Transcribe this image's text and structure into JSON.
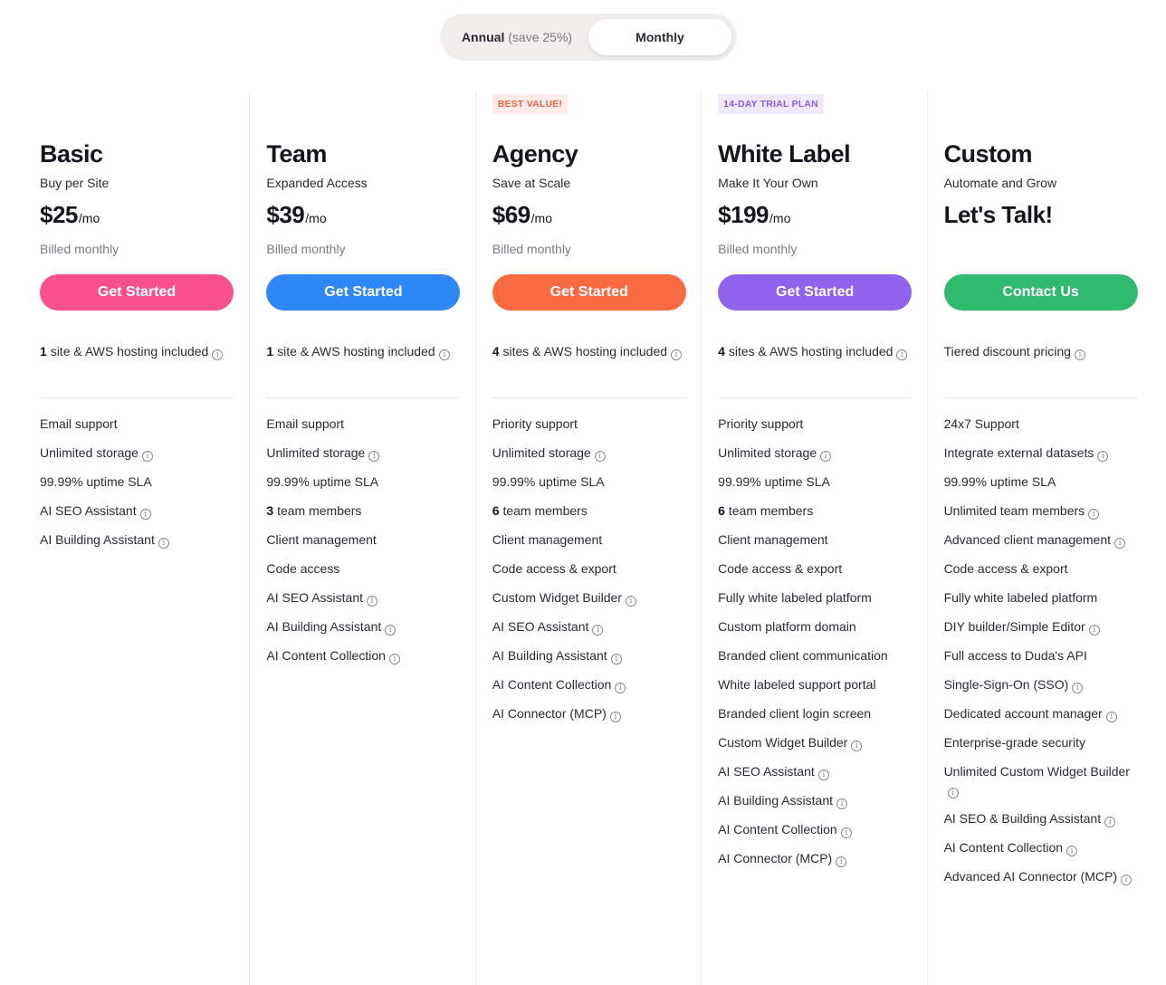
{
  "billing_toggle": {
    "annual_label": "Annual",
    "annual_note": "(save 25%)",
    "monthly_label": "Monthly",
    "selected": "monthly"
  },
  "plans": [
    {
      "id": "basic",
      "name": "Basic",
      "tagline": "Buy per Site",
      "price": "$25",
      "price_unit": "/mo",
      "billed": "Billed monthly",
      "cta": "Get Started",
      "cta_color": "#f7508c",
      "hosting_count": "1",
      "hosting_text": "site & AWS hosting included",
      "hosting_info": true,
      "features": [
        {
          "text": "Email support",
          "info": false
        },
        {
          "text": "Unlimited storage",
          "info": true
        },
        {
          "text": "99.99% uptime SLA",
          "info": false
        },
        {
          "text": "AI SEO Assistant",
          "info": true
        },
        {
          "text": "AI Building Assistant",
          "info": true
        }
      ]
    },
    {
      "id": "team",
      "name": "Team",
      "tagline": "Expanded Access",
      "price": "$39",
      "price_unit": "/mo",
      "billed": "Billed monthly",
      "cta": "Get Started",
      "cta_color": "#2f86f6",
      "hosting_count": "1",
      "hosting_text": "site & AWS hosting included",
      "hosting_info": true,
      "features": [
        {
          "text": "Email support",
          "info": false
        },
        {
          "text": "Unlimited storage",
          "info": true
        },
        {
          "text": "99.99% uptime SLA",
          "info": false
        },
        {
          "bold": "3",
          "text": "team members",
          "info": false
        },
        {
          "text": "Client management",
          "info": false
        },
        {
          "text": "Code access",
          "info": false
        },
        {
          "text": "AI SEO Assistant",
          "info": true
        },
        {
          "text": "AI Building Assistant",
          "info": true
        },
        {
          "text": "AI Content Collection",
          "info": true
        }
      ]
    },
    {
      "id": "agency",
      "name": "Agency",
      "tagline": "Save at Scale",
      "price": "$69",
      "price_unit": "/mo",
      "billed": "Billed monthly",
      "cta": "Get Started",
      "cta_color": "#fa6a41",
      "badge": "BEST VALUE!",
      "badge_color": "#f0643c",
      "badge_bg": "#fdecea",
      "hosting_count": "4",
      "hosting_text": "sites & AWS hosting included",
      "hosting_info": true,
      "features": [
        {
          "text": "Priority support",
          "info": false
        },
        {
          "text": "Unlimited storage",
          "info": true
        },
        {
          "text": "99.99% uptime SLA",
          "info": false
        },
        {
          "bold": "6",
          "text": "team members",
          "info": false
        },
        {
          "text": "Client management",
          "info": false
        },
        {
          "text": "Code access & export",
          "info": false
        },
        {
          "text": "Custom Widget Builder",
          "info": true
        },
        {
          "text": "AI SEO Assistant",
          "info": true
        },
        {
          "text": "AI Building Assistant",
          "info": true
        },
        {
          "text": "AI Content Collection",
          "info": true
        },
        {
          "text": "AI Connector (MCP)",
          "info": true
        }
      ]
    },
    {
      "id": "white-label",
      "name": "White Label",
      "tagline": "Make It Your Own",
      "price": "$199",
      "price_unit": "/mo",
      "billed": "Billed monthly",
      "cta": "Get Started",
      "cta_color": "#8f63ec",
      "badge": "14-DAY TRIAL PLAN",
      "badge_color": "#8a5ce6",
      "badge_bg": "#efe9fb",
      "hosting_count": "4",
      "hosting_text": "sites & AWS hosting included",
      "hosting_info": true,
      "features": [
        {
          "text": "Priority support",
          "info": false
        },
        {
          "text": "Unlimited storage",
          "info": true
        },
        {
          "text": "99.99% uptime SLA",
          "info": false
        },
        {
          "bold": "6",
          "text": "team members",
          "info": false
        },
        {
          "text": "Client management",
          "info": false
        },
        {
          "text": "Code access & export",
          "info": false
        },
        {
          "text": "Fully white labeled platform",
          "info": false
        },
        {
          "text": "Custom platform domain",
          "info": false
        },
        {
          "text": "Branded client communication",
          "info": false
        },
        {
          "text": "White labeled support portal",
          "info": false
        },
        {
          "text": "Branded client login screen",
          "info": false
        },
        {
          "text": "Custom Widget Builder",
          "info": true
        },
        {
          "text": "AI SEO Assistant",
          "info": true
        },
        {
          "text": "AI Building Assistant",
          "info": true
        },
        {
          "text": "AI Content Collection",
          "info": true
        },
        {
          "text": "AI Connector (MCP)",
          "info": true
        }
      ]
    },
    {
      "id": "custom",
      "name": "Custom",
      "tagline": "Automate and Grow",
      "price": "Let's Talk!",
      "price_unit": "",
      "billed": "",
      "cta": "Contact Us",
      "cta_color": "#2fba6f",
      "hosting_count": "",
      "hosting_text": "Tiered discount pricing",
      "hosting_info": true,
      "features": [
        {
          "text": "24x7 Support",
          "info": false
        },
        {
          "text": "Integrate external datasets",
          "info": true
        },
        {
          "text": "99.99% uptime SLA",
          "info": false
        },
        {
          "text": "Unlimited team members",
          "info": true
        },
        {
          "text": "Advanced client management",
          "info": true
        },
        {
          "text": "Code access & export",
          "info": false
        },
        {
          "text": "Fully white labeled platform",
          "info": false
        },
        {
          "text": "DIY builder/Simple Editor",
          "info": true
        },
        {
          "text": "Full access to Duda's API",
          "info": false
        },
        {
          "text": "Single-Sign-On (SSO)",
          "info": true
        },
        {
          "text": "Dedicated account manager",
          "info": true
        },
        {
          "text": "Enterprise-grade security",
          "info": false
        },
        {
          "text": "Unlimited Custom Widget Builder",
          "info": true
        },
        {
          "text": "AI SEO & Building Assistant",
          "info": true
        },
        {
          "text": "AI Content Collection",
          "info": true
        },
        {
          "text": "Advanced AI Connector (MCP)",
          "info": true
        }
      ]
    }
  ]
}
